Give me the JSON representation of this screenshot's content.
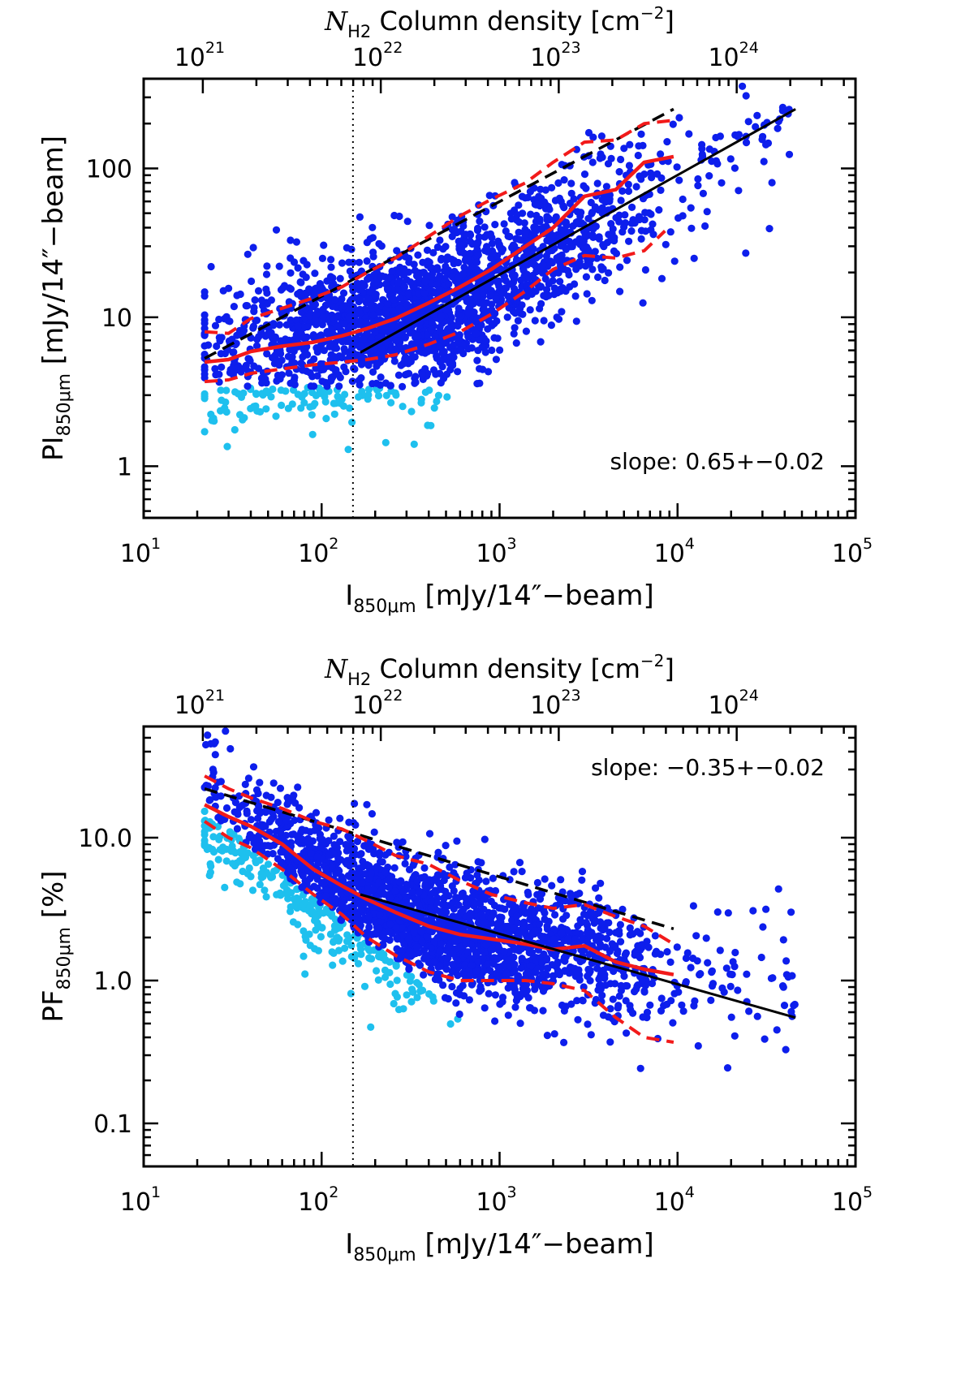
{
  "chart_data": [
    {
      "type": "scatter",
      "xlabel_main": "I",
      "xlabel_sub": "850μm",
      "xlabel_rest": " [mJy/14″−beam]",
      "ylabel_main": "PI",
      "ylabel_sub": "850μm",
      "ylabel_rest": " [mJy/14″−beam]",
      "toplabel_main": "N",
      "toplabel_sub": "H2",
      "toplabel_rest": " Column density [cm",
      "toplabel_sup": "−2",
      "toplabel_end": "]",
      "xscale": "log",
      "yscale": "log",
      "xlim": [
        10,
        100000
      ],
      "ylim": [
        0.45,
        400
      ],
      "x_ticks": [
        {
          "v": 10,
          "base": "10",
          "exp": "1"
        },
        {
          "v": 100,
          "base": "10",
          "exp": "2"
        },
        {
          "v": 1000,
          "base": "10",
          "exp": "3"
        },
        {
          "v": 10000,
          "base": "10",
          "exp": "4"
        },
        {
          "v": 100000,
          "base": "10",
          "exp": "5"
        }
      ],
      "y_ticks": [
        {
          "v": 1,
          "label": "1"
        },
        {
          "v": 10,
          "label": "10"
        },
        {
          "v": 100,
          "label": "100"
        }
      ],
      "top_ticks": [
        {
          "v": 21.5,
          "base": "10",
          "exp": "21"
        },
        {
          "v": 215,
          "base": "10",
          "exp": "22"
        },
        {
          "v": 2150,
          "base": "10",
          "exp": "23"
        },
        {
          "v": 21500,
          "base": "10",
          "exp": "24"
        }
      ],
      "vline_x": 150,
      "annotation": "slope: 0.65+−0.02",
      "fit_line": {
        "x": [
          165,
          46000
        ],
        "y": [
          5.8,
          250
        ],
        "slope": 0.65
      },
      "upper_dashed_black": {
        "x": [
          22,
          9500
        ],
        "y": [
          5.3,
          250
        ]
      },
      "median_red": {
        "x": [
          22,
          30,
          40,
          60,
          90,
          130,
          180,
          260,
          400,
          600,
          900,
          1400,
          2000,
          3000,
          4500,
          6500,
          9500
        ],
        "y": [
          5.0,
          5.2,
          5.9,
          6.4,
          6.8,
          7.5,
          8.4,
          9.8,
          12.5,
          16.0,
          21,
          30,
          40,
          65,
          72,
          110,
          120
        ]
      },
      "upper_red": {
        "x": [
          22,
          30,
          40,
          60,
          90,
          130,
          180,
          260,
          400,
          600,
          900,
          1400,
          2000,
          3000,
          4500,
          6500,
          9500
        ],
        "y": [
          8.0,
          7.8,
          9.8,
          11.5,
          13.5,
          16,
          20,
          25,
          35,
          48,
          62,
          80,
          110,
          150,
          155,
          200,
          210
        ]
      },
      "lower_red": {
        "x": [
          22,
          30,
          40,
          60,
          90,
          130,
          180,
          260,
          400,
          600,
          900,
          1400,
          2000,
          3000,
          4500,
          6500,
          8500
        ],
        "y": [
          3.7,
          3.8,
          4.2,
          4.5,
          4.8,
          5.0,
          5.2,
          5.6,
          6.6,
          8.0,
          10.5,
          15,
          21,
          26,
          25,
          28,
          38
        ]
      },
      "scatter": {
        "seed": 17,
        "n_bright": 2100,
        "n_faint": 430,
        "xmin": 22,
        "xmax": 46000,
        "detection_limit": 3.4
      },
      "colors": {
        "bright": "#0d1eec",
        "faint": "#1ec0ee",
        "median": "#f21a1a",
        "fit": "#000000"
      }
    },
    {
      "type": "scatter",
      "xlabel_main": "I",
      "xlabel_sub": "850μm",
      "xlabel_rest": " [mJy/14″−beam]",
      "ylabel_main": "PF",
      "ylabel_sub": "850μm",
      "ylabel_rest": " [%]",
      "toplabel_main": "N",
      "toplabel_sub": "H2",
      "toplabel_rest": " Column density [cm",
      "toplabel_sup": "−2",
      "toplabel_end": "]",
      "xscale": "log",
      "yscale": "log",
      "xlim": [
        10,
        100000
      ],
      "ylim": [
        0.05,
        60
      ],
      "x_ticks": [
        {
          "v": 10,
          "base": "10",
          "exp": "1"
        },
        {
          "v": 100,
          "base": "10",
          "exp": "2"
        },
        {
          "v": 1000,
          "base": "10",
          "exp": "3"
        },
        {
          "v": 10000,
          "base": "10",
          "exp": "4"
        },
        {
          "v": 100000,
          "base": "10",
          "exp": "5"
        }
      ],
      "y_ticks": [
        {
          "v": 0.1,
          "label": "0.1"
        },
        {
          "v": 1,
          "label": "1.0"
        },
        {
          "v": 10,
          "label": "10.0"
        }
      ],
      "top_ticks": [
        {
          "v": 21.5,
          "base": "10",
          "exp": "21"
        },
        {
          "v": 215,
          "base": "10",
          "exp": "22"
        },
        {
          "v": 2150,
          "base": "10",
          "exp": "23"
        },
        {
          "v": 21500,
          "base": "10",
          "exp": "24"
        }
      ],
      "vline_x": 150,
      "annotation": "slope: −0.35+−0.02",
      "fit_line": {
        "x": [
          165,
          46000
        ],
        "y": [
          4.0,
          0.55
        ],
        "slope": -0.35
      },
      "upper_dashed_black": {
        "x": [
          22,
          9500
        ],
        "y": [
          22,
          2.3
        ]
      },
      "median_red": {
        "x": [
          22,
          30,
          40,
          60,
          90,
          130,
          180,
          260,
          400,
          600,
          900,
          1400,
          2000,
          3000,
          4500,
          6500,
          9500
        ],
        "y": [
          17,
          14,
          12,
          9.0,
          6.0,
          4.6,
          3.7,
          3.0,
          2.4,
          2.1,
          1.95,
          1.8,
          1.65,
          1.75,
          1.35,
          1.2,
          1.1
        ]
      },
      "upper_red": {
        "x": [
          22,
          30,
          40,
          60,
          90,
          130,
          180,
          260,
          400,
          600,
          900,
          1400,
          2000,
          3000,
          4500,
          6500,
          9500
        ],
        "y": [
          27,
          22,
          19,
          16,
          13,
          11.5,
          9.5,
          7.5,
          6.5,
          5.0,
          4.0,
          3.5,
          3.2,
          3.4,
          2.8,
          2.4,
          1.8
        ]
      },
      "lower_red": {
        "x": [
          22,
          30,
          40,
          60,
          90,
          130,
          180,
          260,
          400,
          600,
          900,
          1400,
          2000,
          3000,
          4500,
          6500,
          9500
        ],
        "y": [
          13,
          10,
          8.5,
          6.0,
          4.0,
          2.9,
          2.0,
          1.5,
          1.15,
          1.0,
          1.0,
          1.0,
          0.95,
          0.85,
          0.55,
          0.4,
          0.37
        ]
      },
      "scatter": {
        "seed": 29,
        "n_bright": 2100,
        "n_faint": 430,
        "xmin": 22,
        "xmax": 46000
      },
      "colors": {
        "bright": "#0d1eec",
        "faint": "#1ec0ee",
        "median": "#f21a1a",
        "fit": "#000000"
      }
    }
  ]
}
